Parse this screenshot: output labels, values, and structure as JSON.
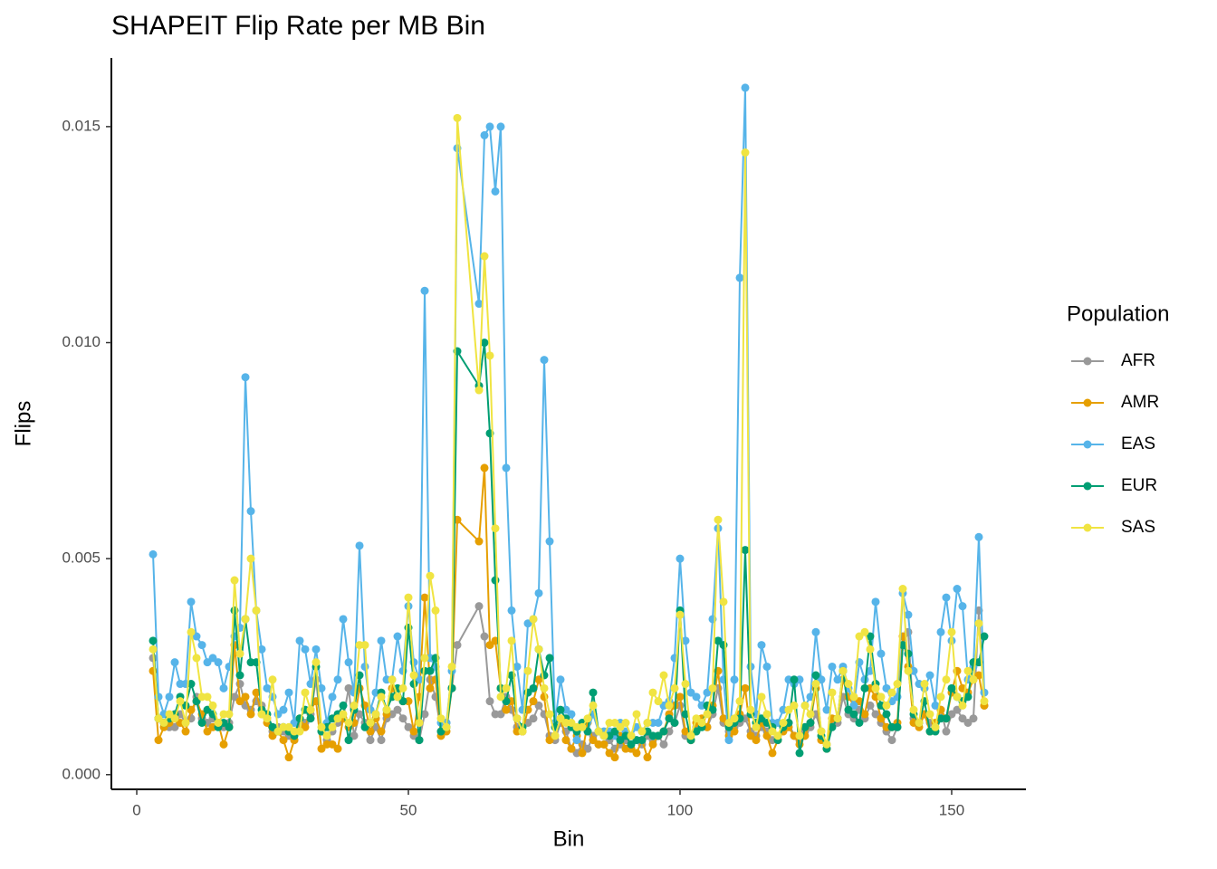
{
  "chart_data": {
    "type": "line",
    "title": "SHAPEIT Flip Rate per MB Bin",
    "x_label": "Bin",
    "y_label": "Flips",
    "legend_title": "Population",
    "legend": "right",
    "xlim": [
      -4.67,
      163.67
    ],
    "ylim": [
      -0.00034,
      0.01659
    ],
    "xticks": [
      0,
      50,
      100,
      150
    ],
    "yticks": [
      {
        "value": 0,
        "label": "0.000"
      },
      0.005,
      {
        "value": 0.01,
        "label": "0.010"
      },
      0.015
    ],
    "x": [
      3,
      4,
      5,
      6,
      7,
      8,
      9,
      10,
      11,
      12,
      13,
      14,
      15,
      16,
      17,
      18,
      19,
      20,
      21,
      22,
      23,
      24,
      25,
      26,
      27,
      28,
      29,
      30,
      31,
      32,
      33,
      34,
      35,
      36,
      37,
      38,
      39,
      40,
      41,
      42,
      43,
      44,
      45,
      46,
      47,
      48,
      49,
      50,
      51,
      52,
      53,
      54,
      55,
      56,
      57,
      58,
      59,
      63,
      64,
      65,
      66,
      67,
      68,
      69,
      70,
      71,
      72,
      73,
      74,
      75,
      76,
      77,
      78,
      79,
      80,
      81,
      82,
      83,
      84,
      85,
      86,
      87,
      88,
      89,
      90,
      91,
      92,
      93,
      94,
      95,
      96,
      97,
      98,
      99,
      100,
      101,
      102,
      103,
      104,
      105,
      106,
      107,
      108,
      109,
      110,
      111,
      112,
      113,
      114,
      115,
      116,
      117,
      118,
      119,
      120,
      121,
      122,
      123,
      124,
      125,
      126,
      127,
      128,
      129,
      130,
      131,
      132,
      133,
      134,
      135,
      136,
      137,
      138,
      139,
      140,
      141,
      142,
      143,
      144,
      145,
      146,
      147,
      148,
      149,
      150,
      151,
      152,
      153,
      154,
      155,
      156
    ],
    "series": [
      {
        "name": "AFR",
        "color": "#999999",
        "values": [
          0.0027,
          0.0013,
          0.0012,
          0.0011,
          0.0011,
          0.0014,
          0.0012,
          0.0013,
          0.0018,
          0.0013,
          0.0012,
          0.0013,
          0.0012,
          0.0011,
          0.0012,
          0.0018,
          0.0021,
          0.0016,
          0.0015,
          0.0017,
          0.0016,
          0.0013,
          0.001,
          0.0011,
          0.001,
          0.0009,
          0.0008,
          0.0011,
          0.0012,
          0.0014,
          0.0022,
          0.001,
          0.0008,
          0.001,
          0.0012,
          0.0013,
          0.002,
          0.0009,
          0.0014,
          0.0012,
          0.0008,
          0.0011,
          0.0008,
          0.0013,
          0.0014,
          0.0015,
          0.0013,
          0.0011,
          0.0009,
          0.0008,
          0.0014,
          0.0022,
          0.0018,
          0.001,
          0.0012,
          0.002,
          0.003,
          0.0039,
          0.0032,
          0.0017,
          0.0014,
          0.0014,
          0.0018,
          0.0015,
          0.0011,
          0.001,
          0.0012,
          0.0013,
          0.0016,
          0.0014,
          0.0009,
          0.0008,
          0.0012,
          0.001,
          0.0006,
          0.0005,
          0.0007,
          0.0006,
          0.0009,
          0.0007,
          0.0007,
          0.0008,
          0.0006,
          0.0007,
          0.0008,
          0.0006,
          0.0008,
          0.0007,
          0.0009,
          0.0008,
          0.0009,
          0.0007,
          0.001,
          0.0012,
          0.0016,
          0.0009,
          0.0008,
          0.0011,
          0.0012,
          0.0011,
          0.0014,
          0.002,
          0.0012,
          0.001,
          0.0011,
          0.0012,
          0.0013,
          0.001,
          0.0009,
          0.0011,
          0.001,
          0.0008,
          0.0009,
          0.0011,
          0.0012,
          0.0009,
          0.0008,
          0.001,
          0.0011,
          0.0014,
          0.001,
          0.0007,
          0.0012,
          0.0012,
          0.0018,
          0.0014,
          0.0013,
          0.0015,
          0.0013,
          0.0016,
          0.0014,
          0.0012,
          0.001,
          0.0008,
          0.0011,
          0.003,
          0.0033,
          0.0013,
          0.0012,
          0.0014,
          0.0012,
          0.0011,
          0.0015,
          0.001,
          0.0014,
          0.0015,
          0.0013,
          0.0012,
          0.0013,
          0.0038,
          0.0016
        ]
      },
      {
        "name": "AMR",
        "color": "#E69F00",
        "values": [
          0.0024,
          0.0008,
          0.0011,
          0.0012,
          0.0013,
          0.0012,
          0.001,
          0.0015,
          0.0017,
          0.0014,
          0.001,
          0.0011,
          0.0012,
          0.0007,
          0.0011,
          0.003,
          0.0017,
          0.0018,
          0.0014,
          0.0019,
          0.0014,
          0.0012,
          0.0009,
          0.001,
          0.0008,
          0.0004,
          0.0008,
          0.0013,
          0.0011,
          0.0015,
          0.0017,
          0.0006,
          0.0007,
          0.0007,
          0.0006,
          0.0013,
          0.0011,
          0.0012,
          0.002,
          0.0016,
          0.001,
          0.0013,
          0.001,
          0.0014,
          0.002,
          0.0018,
          0.0017,
          0.0017,
          0.001,
          0.0018,
          0.0041,
          0.002,
          0.0022,
          0.0009,
          0.001,
          0.002,
          0.0059,
          0.0054,
          0.0071,
          0.003,
          0.0031,
          0.002,
          0.0015,
          0.0017,
          0.001,
          0.001,
          0.0015,
          0.0017,
          0.0022,
          0.0018,
          0.0008,
          0.0009,
          0.0013,
          0.0008,
          0.0006,
          0.0009,
          0.0005,
          0.0012,
          0.0008,
          0.0007,
          0.0007,
          0.0005,
          0.0004,
          0.0009,
          0.0006,
          0.0006,
          0.0005,
          0.0008,
          0.0004,
          0.0007,
          0.0009,
          0.001,
          0.0014,
          0.0016,
          0.0018,
          0.001,
          0.0008,
          0.0012,
          0.0013,
          0.0011,
          0.0016,
          0.0024,
          0.0013,
          0.0009,
          0.001,
          0.0014,
          0.002,
          0.0009,
          0.0008,
          0.0012,
          0.0009,
          0.0005,
          0.0008,
          0.001,
          0.0011,
          0.0009,
          0.0007,
          0.0009,
          0.0012,
          0.002,
          0.0008,
          0.0006,
          0.0013,
          0.0013,
          0.0022,
          0.0018,
          0.0016,
          0.0017,
          0.0014,
          0.002,
          0.0018,
          0.0013,
          0.0011,
          0.0011,
          0.0012,
          0.0032,
          0.0025,
          0.0012,
          0.0011,
          0.0014,
          0.001,
          0.0012,
          0.0015,
          0.0013,
          0.0019,
          0.0024,
          0.002,
          0.0019,
          0.0022,
          0.0023,
          0.0016
        ]
      },
      {
        "name": "EAS",
        "color": "#56B4E9",
        "values": [
          0.0051,
          0.0018,
          0.0014,
          0.0018,
          0.0026,
          0.0021,
          0.0021,
          0.004,
          0.0032,
          0.003,
          0.0026,
          0.0027,
          0.0026,
          0.002,
          0.0025,
          0.0032,
          0.0034,
          0.0092,
          0.0061,
          0.0038,
          0.0029,
          0.002,
          0.0018,
          0.0014,
          0.0015,
          0.0019,
          0.0012,
          0.0031,
          0.0029,
          0.0021,
          0.0029,
          0.002,
          0.0012,
          0.0018,
          0.0022,
          0.0036,
          0.0026,
          0.0019,
          0.0053,
          0.0025,
          0.0015,
          0.0019,
          0.0031,
          0.0022,
          0.0022,
          0.0032,
          0.0024,
          0.0039,
          0.0026,
          0.0022,
          0.0112,
          0.0027,
          0.0025,
          0.0012,
          0.0012,
          0.0024,
          0.0145,
          0.0109,
          0.0148,
          0.015,
          0.0135,
          0.015,
          0.0071,
          0.0038,
          0.0025,
          0.0015,
          0.0035,
          0.0036,
          0.0042,
          0.0096,
          0.0054,
          0.0012,
          0.0022,
          0.0015,
          0.0014,
          0.0008,
          0.0012,
          0.001,
          0.0014,
          0.001,
          0.001,
          0.001,
          0.0009,
          0.0012,
          0.001,
          0.0009,
          0.0011,
          0.001,
          0.0012,
          0.0012,
          0.0012,
          0.0016,
          0.0017,
          0.0027,
          0.005,
          0.0031,
          0.0019,
          0.0018,
          0.0016,
          0.0019,
          0.0036,
          0.0057,
          0.0022,
          0.0008,
          0.0022,
          0.0115,
          0.0159,
          0.0025,
          0.0014,
          0.003,
          0.0025,
          0.0012,
          0.0012,
          0.0015,
          0.0022,
          0.0021,
          0.0022,
          0.0016,
          0.0018,
          0.0033,
          0.0022,
          0.0015,
          0.0025,
          0.0022,
          0.0025,
          0.002,
          0.0016,
          0.0026,
          0.0022,
          0.0024,
          0.004,
          0.0028,
          0.002,
          0.0017,
          0.0018,
          0.0042,
          0.0037,
          0.0024,
          0.0021,
          0.002,
          0.0023,
          0.0016,
          0.0033,
          0.0041,
          0.0031,
          0.0043,
          0.0039,
          0.0022,
          0.0025,
          0.0055,
          0.0019
        ]
      },
      {
        "name": "EUR",
        "color": "#009E73",
        "values": [
          0.0031,
          0.0013,
          0.0012,
          0.0013,
          0.0014,
          0.0018,
          0.0016,
          0.0021,
          0.0017,
          0.0012,
          0.0015,
          0.0014,
          0.0011,
          0.0012,
          0.0011,
          0.0038,
          0.0023,
          0.0036,
          0.0026,
          0.0026,
          0.0015,
          0.0014,
          0.0011,
          0.001,
          0.0011,
          0.001,
          0.0009,
          0.0013,
          0.0015,
          0.0013,
          0.0025,
          0.001,
          0.0011,
          0.0013,
          0.0014,
          0.0016,
          0.0008,
          0.0015,
          0.0023,
          0.0011,
          0.0012,
          0.0014,
          0.0019,
          0.0015,
          0.0018,
          0.002,
          0.0017,
          0.0034,
          0.0021,
          0.0008,
          0.0024,
          0.0024,
          0.0027,
          0.001,
          0.0011,
          0.002,
          0.0098,
          0.009,
          0.01,
          0.0079,
          0.0045,
          0.002,
          0.0017,
          0.0023,
          0.0013,
          0.0011,
          0.0019,
          0.002,
          0.0029,
          0.0023,
          0.0027,
          0.0011,
          0.0015,
          0.0013,
          0.0011,
          0.001,
          0.0012,
          0.001,
          0.0019,
          0.001,
          0.0009,
          0.0009,
          0.001,
          0.0008,
          0.0009,
          0.0007,
          0.0008,
          0.0008,
          0.001,
          0.0009,
          0.0009,
          0.001,
          0.0013,
          0.0012,
          0.0038,
          0.0014,
          0.0008,
          0.001,
          0.0011,
          0.0016,
          0.0015,
          0.0031,
          0.003,
          0.0011,
          0.0012,
          0.0013,
          0.0052,
          0.0014,
          0.0012,
          0.0013,
          0.0012,
          0.0011,
          0.0008,
          0.0011,
          0.0012,
          0.0022,
          0.0005,
          0.0011,
          0.0012,
          0.0023,
          0.0009,
          0.0006,
          0.0011,
          0.0013,
          0.0024,
          0.0015,
          0.0014,
          0.0012,
          0.002,
          0.0032,
          0.0021,
          0.0016,
          0.0014,
          0.0011,
          0.0011,
          0.003,
          0.0028,
          0.0014,
          0.0012,
          0.0017,
          0.001,
          0.001,
          0.0013,
          0.0013,
          0.002,
          0.0018,
          0.0017,
          0.0018,
          0.0026,
          0.0026,
          0.0032
        ]
      },
      {
        "name": "SAS",
        "color": "#F0E442",
        "values": [
          0.0029,
          0.0013,
          0.0012,
          0.0014,
          0.0013,
          0.0017,
          0.0012,
          0.0033,
          0.0027,
          0.0018,
          0.0018,
          0.0016,
          0.0012,
          0.0014,
          0.0014,
          0.0045,
          0.0028,
          0.0036,
          0.005,
          0.0038,
          0.0014,
          0.0013,
          0.0022,
          0.001,
          0.0011,
          0.0011,
          0.001,
          0.001,
          0.0019,
          0.0015,
          0.0026,
          0.0011,
          0.0009,
          0.0011,
          0.0013,
          0.0014,
          0.0012,
          0.0016,
          0.003,
          0.003,
          0.0012,
          0.0014,
          0.0018,
          0.0015,
          0.0022,
          0.0018,
          0.002,
          0.0041,
          0.0023,
          0.0012,
          0.0027,
          0.0046,
          0.0038,
          0.0013,
          0.0011,
          0.0025,
          0.0152,
          0.0089,
          0.012,
          0.0097,
          0.0057,
          0.0018,
          0.002,
          0.0031,
          0.0013,
          0.001,
          0.0024,
          0.0036,
          0.0029,
          0.002,
          0.0014,
          0.0009,
          0.0013,
          0.0012,
          0.0012,
          0.0011,
          0.0011,
          0.0013,
          0.0016,
          0.001,
          0.0009,
          0.0012,
          0.0012,
          0.0011,
          0.0012,
          0.0009,
          0.0014,
          0.001,
          0.0012,
          0.0019,
          0.0017,
          0.0023,
          0.0016,
          0.002,
          0.0037,
          0.0021,
          0.0009,
          0.0013,
          0.0012,
          0.0014,
          0.002,
          0.0059,
          0.004,
          0.0012,
          0.0013,
          0.0017,
          0.0144,
          0.0015,
          0.0011,
          0.0018,
          0.0014,
          0.001,
          0.0009,
          0.0012,
          0.0015,
          0.0016,
          0.0009,
          0.0016,
          0.0014,
          0.0021,
          0.001,
          0.0007,
          0.0019,
          0.0013,
          0.0024,
          0.0021,
          0.0018,
          0.0032,
          0.0033,
          0.0029,
          0.002,
          0.0018,
          0.0016,
          0.0019,
          0.0021,
          0.0043,
          0.0024,
          0.0015,
          0.0012,
          0.0021,
          0.0014,
          0.0011,
          0.0018,
          0.0022,
          0.0033,
          0.0018,
          0.0016,
          0.0024,
          0.0022,
          0.0035,
          0.0017
        ]
      }
    ]
  }
}
